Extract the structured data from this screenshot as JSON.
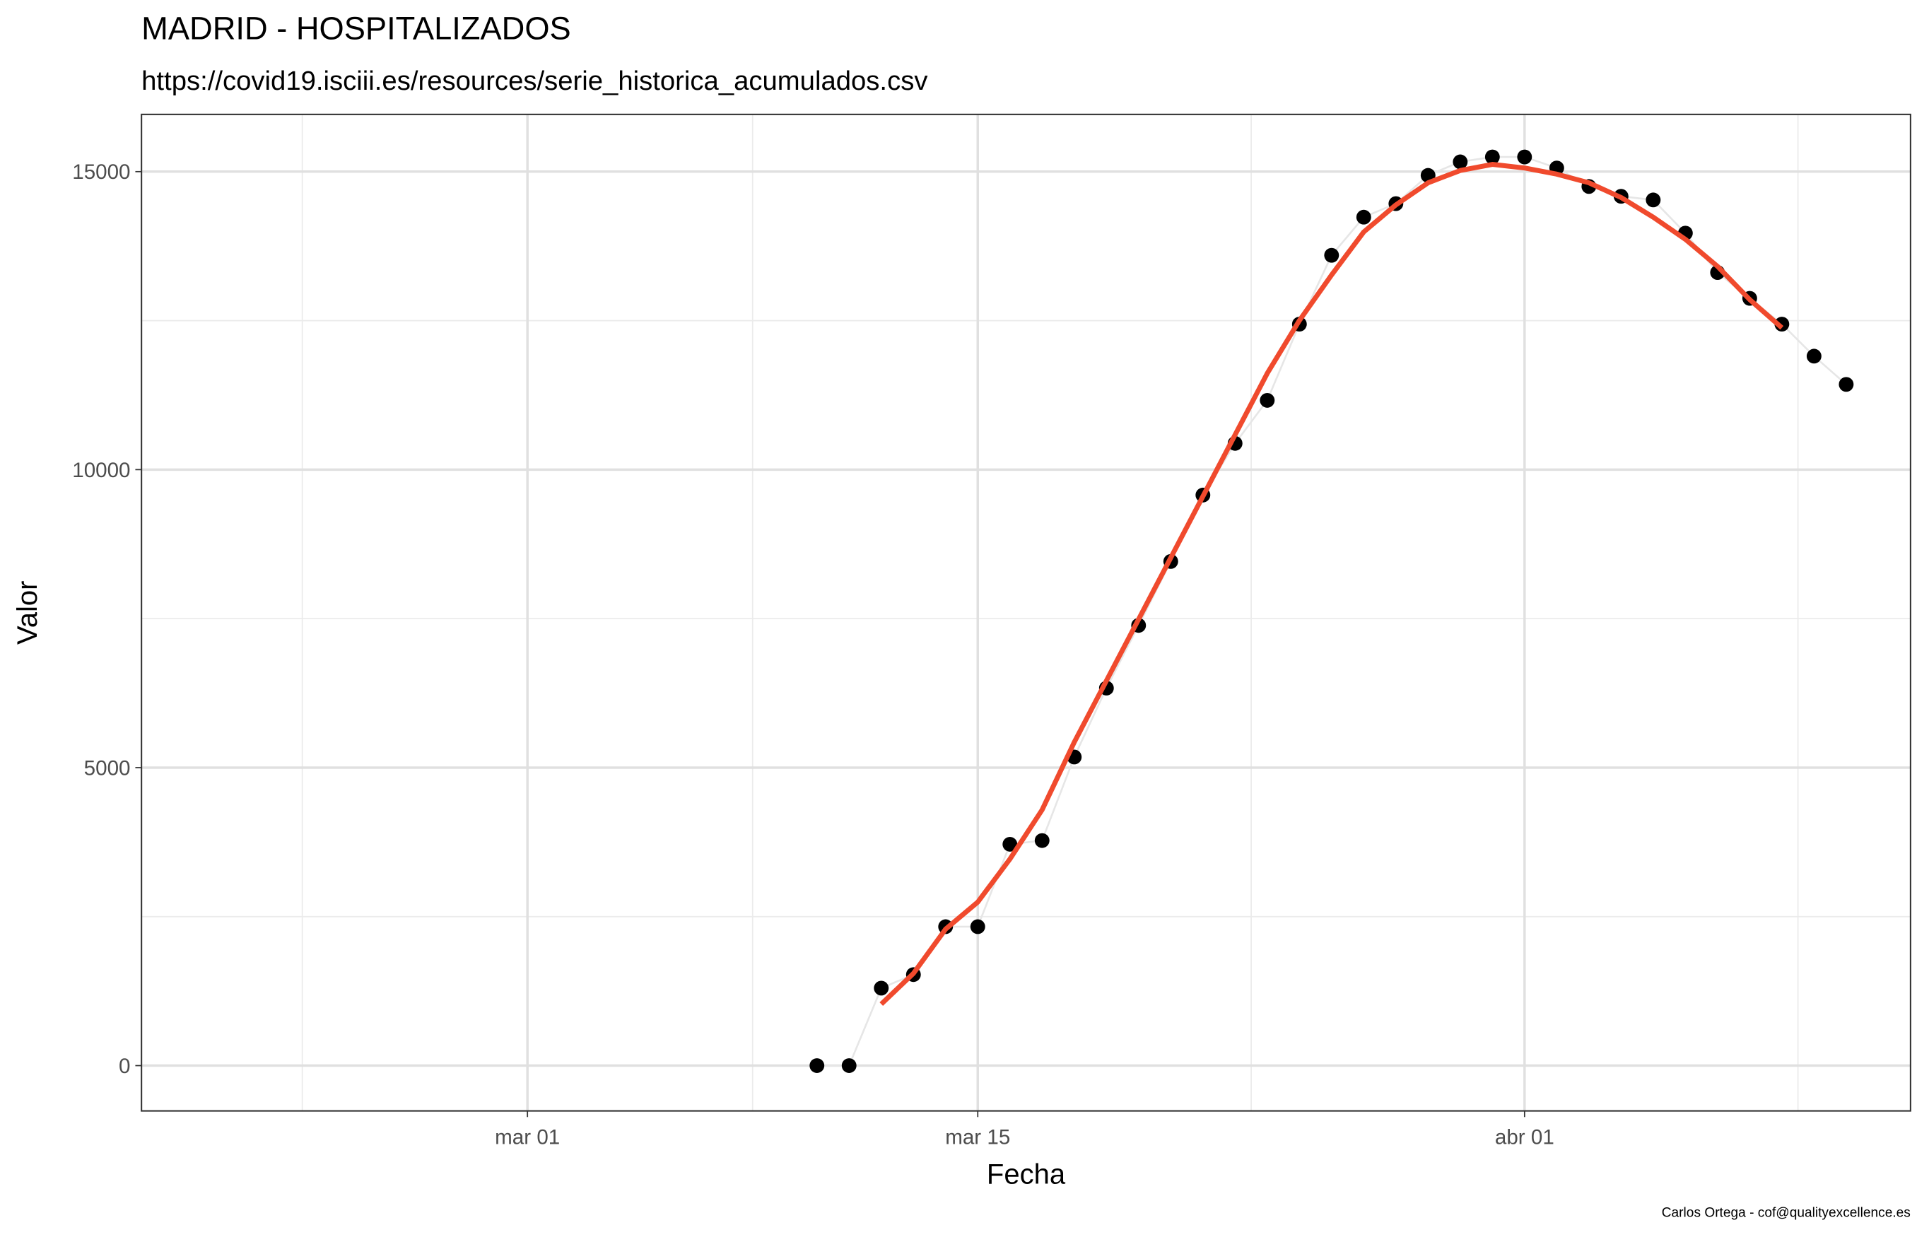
{
  "chart_data": {
    "type": "line",
    "title": "MADRID - HOSPITALIZADOS",
    "subtitle": "https://covid19.isciii.es/resources/serie_historica_acumulados.csv",
    "x_label": "Fecha",
    "y_label": "Valor",
    "caption": "Carlos Ortega - cof@qualityexcellence.es",
    "x": [
      "03-10",
      "03-11",
      "03-12",
      "03-13",
      "03-14",
      "03-15",
      "03-16",
      "03-17",
      "03-18",
      "03-19",
      "03-20",
      "03-21",
      "03-22",
      "03-23",
      "03-24",
      "03-25",
      "03-26",
      "03-27",
      "03-28",
      "03-29",
      "03-30",
      "03-31",
      "04-01",
      "04-02",
      "04-03",
      "04-04",
      "04-05",
      "04-06",
      "04-07",
      "04-08",
      "04-09",
      "04-10",
      "04-11"
    ],
    "series": [
      {
        "style": "points",
        "color": "#000000",
        "line_color": "#e6e6e6",
        "values": [
          0,
          0,
          1300,
          1527,
          2331,
          2331,
          3714,
          3776,
          5178,
          6334,
          7386,
          8459,
          9573,
          10440,
          11162,
          12441,
          13596,
          14236,
          14463,
          14937,
          15164,
          15246,
          15246,
          15061,
          14751,
          14586,
          14525,
          13968,
          13307,
          12874,
          12441,
          11904,
          11430
        ]
      },
      {
        "style": "line",
        "color": "#f04a2d",
        "values": [
          null,
          null,
          1032,
          1547,
          2290,
          2744,
          3466,
          4291,
          5426,
          6458,
          7489,
          8521,
          9552,
          10584,
          11615,
          12503,
          13266,
          13988,
          14442,
          14813,
          15019,
          15122,
          15061,
          14958,
          14813,
          14566,
          14236,
          13864,
          13410,
          12853,
          12379,
          null,
          null
        ]
      }
    ],
    "xlim": [
      "02-18",
      "04-13"
    ],
    "xticks": [
      {
        "value": "03-01",
        "label": "mar 01"
      },
      {
        "value": "03-15",
        "label": "mar 15"
      },
      {
        "value": "04-01",
        "label": "abr 01"
      }
    ],
    "ylim": [
      -760,
      15960
    ],
    "yticks": [
      0,
      5000,
      10000,
      15000
    ],
    "grid": true
  }
}
